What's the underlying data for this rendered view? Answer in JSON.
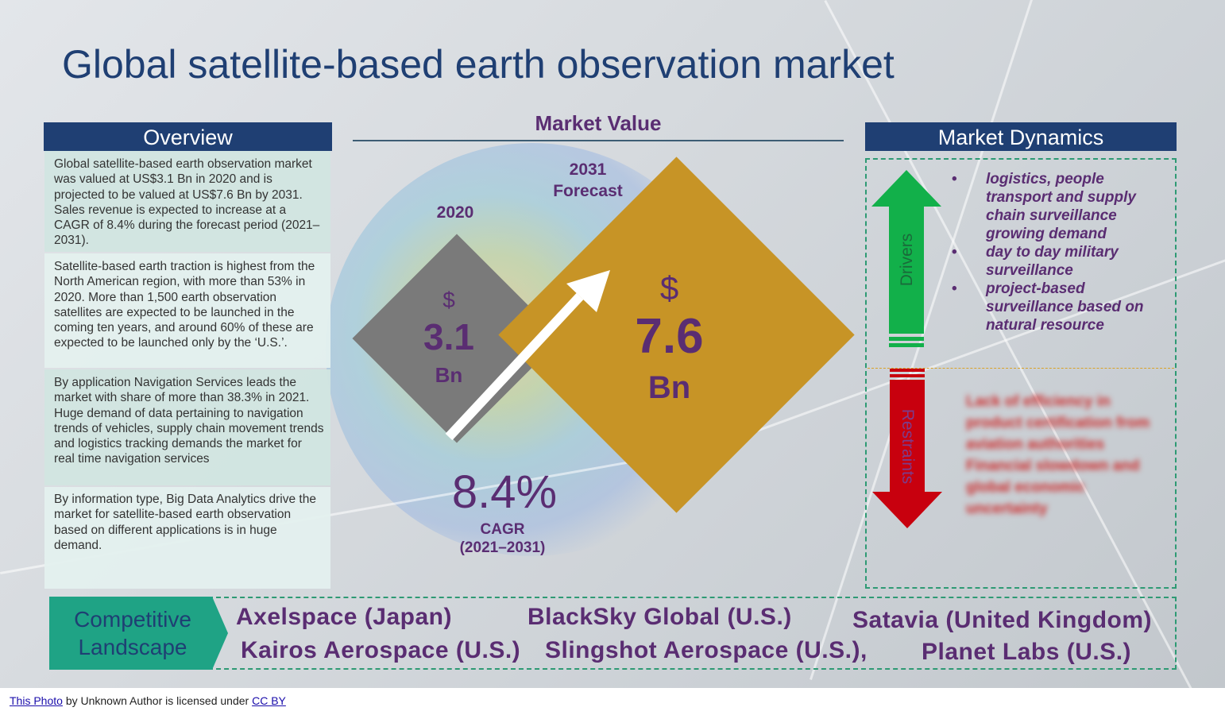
{
  "title": "Global satellite-based earth observation market",
  "overview": {
    "header": "Overview",
    "paragraphs": [
      "Global satellite-based earth observation market was valued at US$3.1 Bn in 2020 and is projected to be valued at US$7.6 Bn by 2031. Sales revenue is expected to increase at a CAGR of 8.4% during the forecast period (2021–2031).",
      "Satellite-based earth traction is highest from the North American region, with more than 53% in 2020. More than 1,500 earth observation satellites are expected to be launched in the coming ten years, and around 60% of these are expected to be launched only by the ‘U.S.’.",
      "By application Navigation Services leads the market with share of more than 38.3% in 2021. Huge demand of data pertaining to navigation trends of vehicles, supply chain movement trends and logistics tracking demands the market for real time navigation services",
      "By information type, Big Data Analytics drive the market for satellite-based earth observation based on different applications is in huge demand."
    ]
  },
  "market_value": {
    "header": "Market Value",
    "year_2020": "2020",
    "year_2031": "2031",
    "forecast_label": "Forecast",
    "currency": "$",
    "value_2020": "3.1",
    "value_2031": "7.6",
    "unit": "Bn",
    "cagr": "8.4%",
    "cagr_label": "CAGR",
    "cagr_period": "(2021–2031)"
  },
  "market_dynamics": {
    "header": "Market Dynamics",
    "drivers_label": "Drivers",
    "restraints_label": "Restraints",
    "drivers": [
      "logistics, people transport and supply chain surveillance growing demand",
      "day to day military surveillance",
      "project-based surveillance based on natural resource"
    ],
    "restraints": [
      "Lack of efficiency in product certification from aviation authorities",
      "Financial slowdown and global economic uncertainty"
    ],
    "bullet": "•",
    "colors": {
      "driver": "#12b04a",
      "restraint": "#c8000e"
    }
  },
  "competitive_landscape": {
    "label_line1": "Competitive",
    "label_line2": "Landscape",
    "companies": [
      "Axelspace (Japan)",
      "BlackSky Global (U.S.)",
      "Satavia (United Kingdom)",
      "Kairos Aerospace (U.S.)",
      "Slingshot Aerospace (U.S.),",
      "Planet Labs (U.S.)"
    ]
  },
  "footer": {
    "link1": "This Photo",
    "text1": " by Unknown Author is licensed under ",
    "link2": "CC BY"
  },
  "colors": {
    "navy": "#1f3f73",
    "purple": "#5a2d72",
    "gray_diamond": "#7a7a7a",
    "gold_diamond": "#c79426",
    "teal": "#1fa385"
  }
}
